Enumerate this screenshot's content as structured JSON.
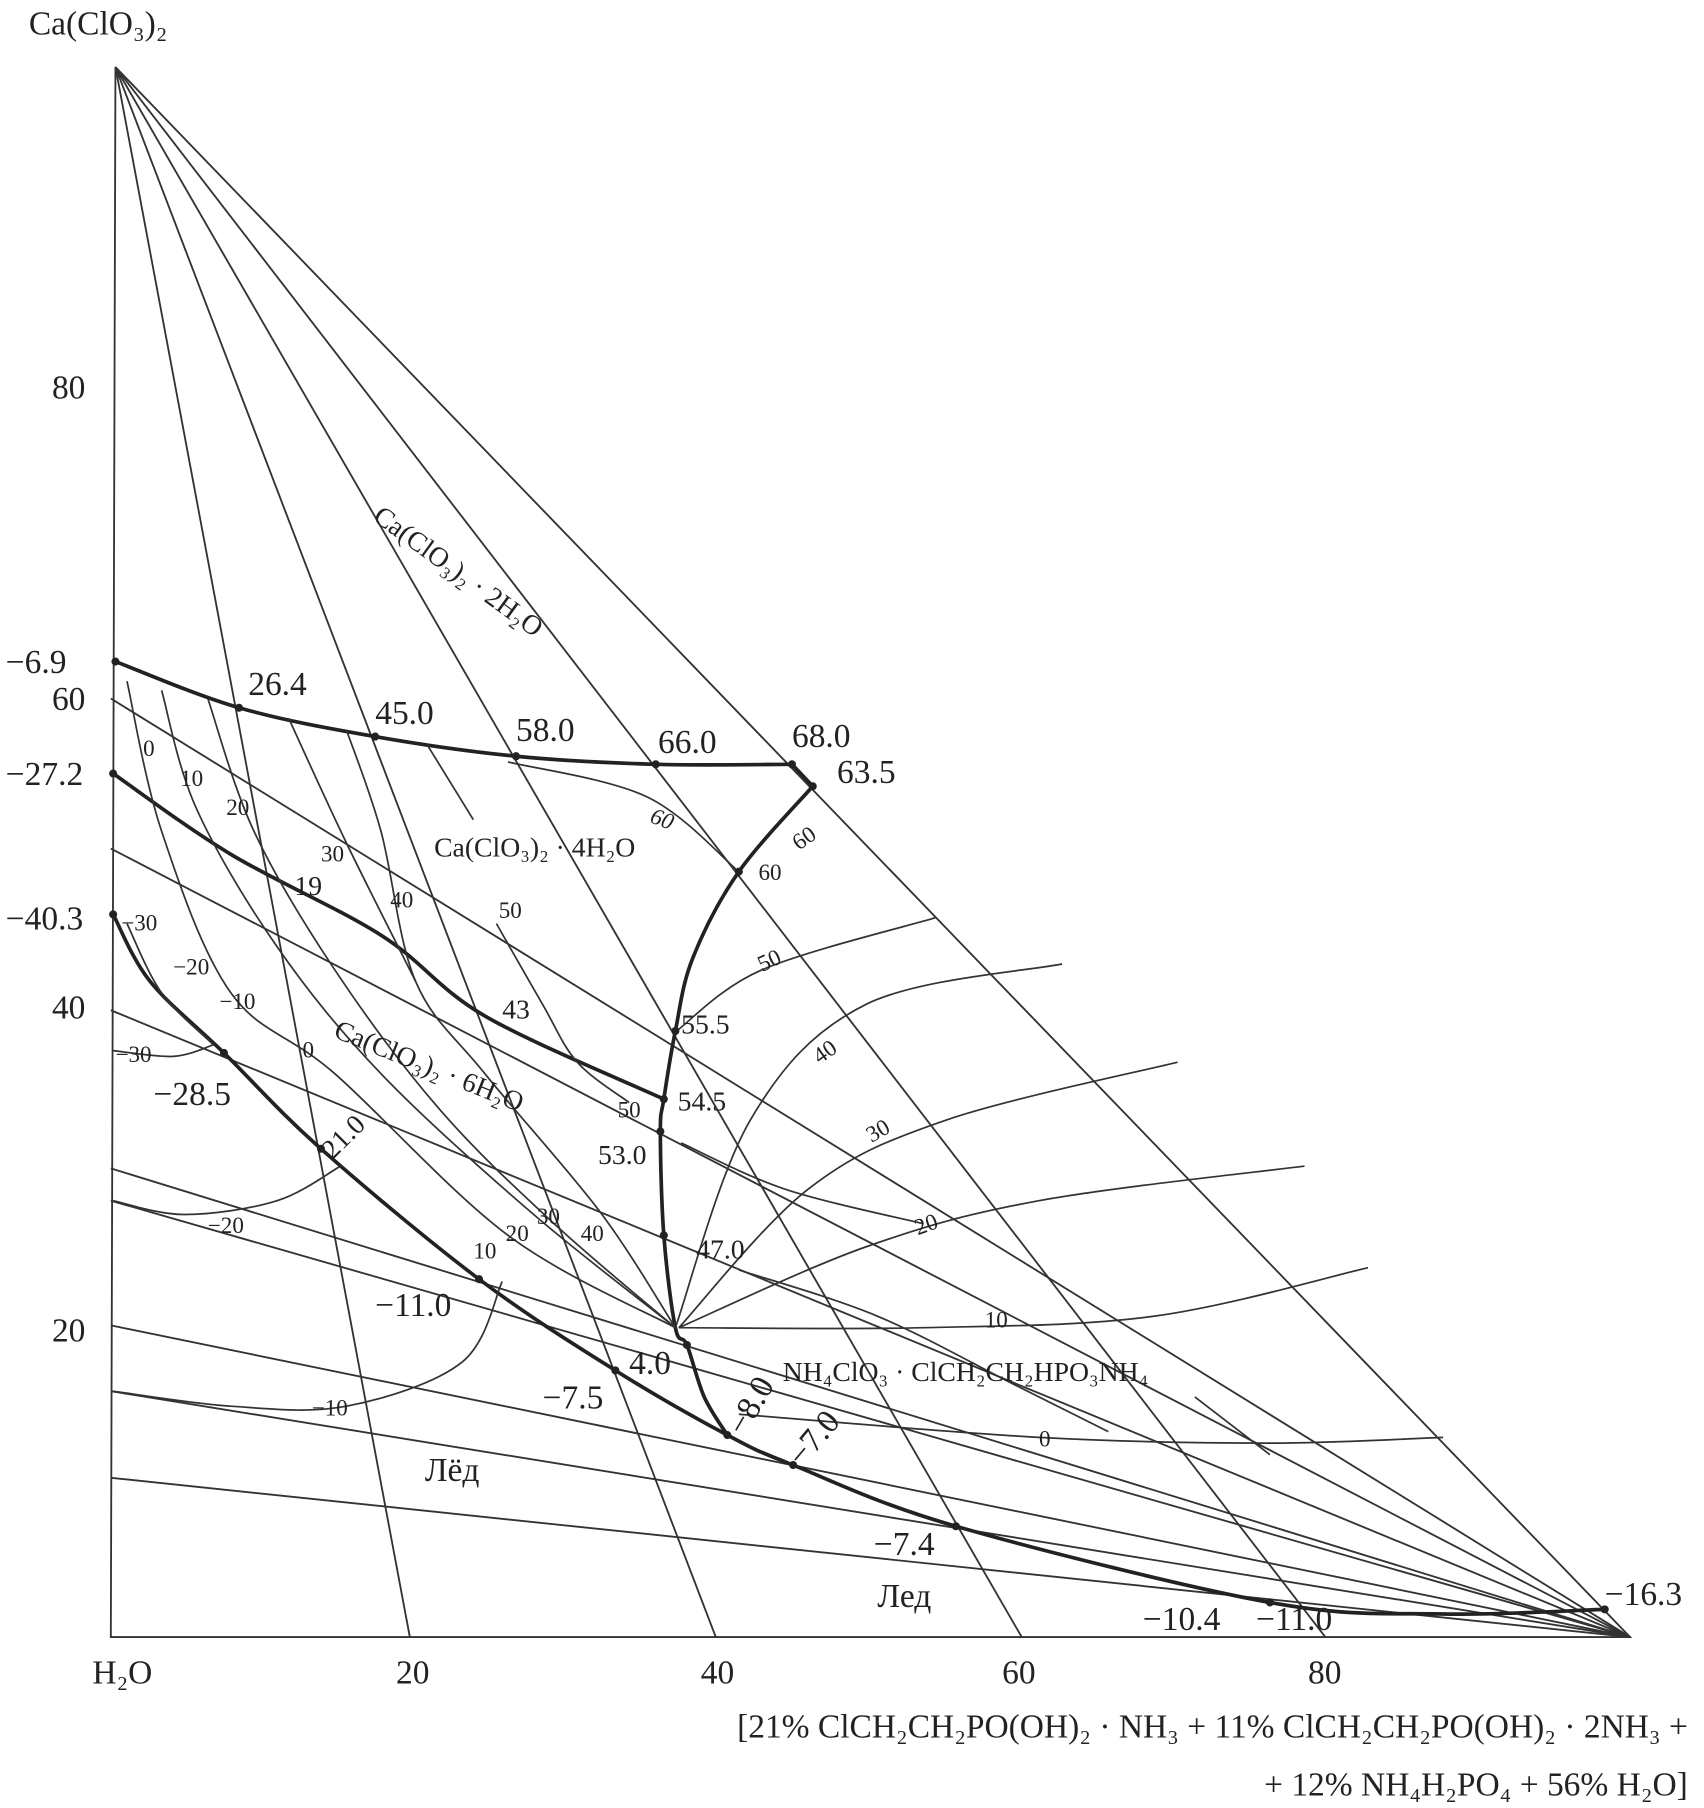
{
  "vertices": {
    "top": "Ca(ClO₃)₂",
    "bottom_left": "H₂O"
  },
  "left_axis_ticks": [
    "80",
    "60",
    "40",
    "20"
  ],
  "bottom_axis_ticks": [
    "20",
    "40",
    "60",
    "80"
  ],
  "bottom_axis_title": [
    "[21% ClCH₂CH₂PO(OH)₂ · NH₃ + 11% ClCH₂CH₂PO(OH)₂ · 2NH₃ +",
    "+ 12% NH₄H₂PO₄ + 56% H₂O]"
  ],
  "left_axis_temps": [
    "−6.9",
    "−27.2",
    "−40.3"
  ],
  "phases": {
    "dihydrate": "Ca(ClO₃)₂ · 2H₂O",
    "tetrahydrate": "Ca(ClO₃)₂ · 4H₂O",
    "hexahydrate": "Ca(ClO₃)₂ · 6H₂O",
    "double_salt": "NH₄ClO₃ · ClCH₂CH₂HPO₃NH₄",
    "ice1": "Лёд",
    "ice2": "Лед"
  },
  "curve_temps": {
    "top": [
      "26.4",
      "45.0",
      "58.0",
      "66.0",
      "68.0",
      "63.5"
    ],
    "points": [
      "55.5",
      "54.5",
      "53.0",
      "47.0",
      "43",
      "19",
      "4.0",
      "−7.5",
      "−8.0",
      "−7.0",
      "−7.4",
      "−10.4",
      "−11.0",
      "−16.3",
      "−28.5",
      "21.0",
      "−11.0"
    ]
  },
  "isotherm_labels": [
    "0",
    "10",
    "20",
    "30",
    "40",
    "50",
    "60",
    "60",
    "60",
    "50",
    "40",
    "30",
    "20",
    "10",
    "0",
    "−30",
    "−20",
    "−10",
    "−30",
    "0",
    "−20",
    "−10",
    "50",
    "10",
    "20",
    "30",
    "40"
  ],
  "colors": {
    "line": "#222222",
    "background": "#ffffff"
  }
}
